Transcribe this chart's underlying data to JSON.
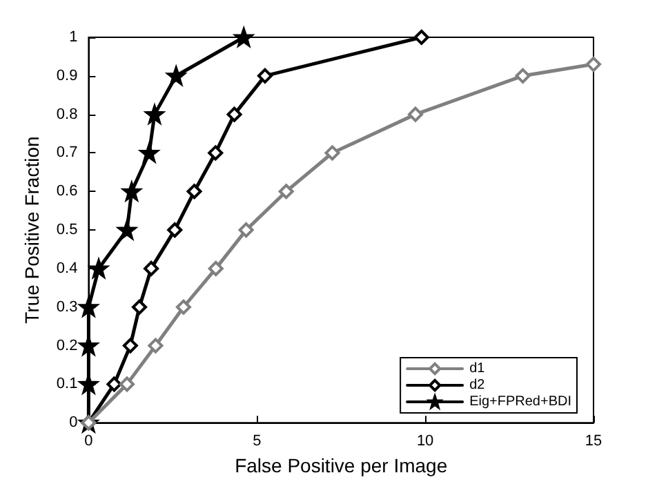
{
  "chart_data": {
    "type": "line",
    "xlabel": "False Positive per Image",
    "ylabel": "True Positive Fraction",
    "xlim": [
      0,
      15
    ],
    "xticks": [
      0,
      5,
      10,
      15
    ],
    "ylim": [
      0,
      1
    ],
    "yticks": [
      0,
      0.1,
      0.2,
      0.3,
      0.4,
      0.5,
      0.6,
      0.7,
      0.8,
      0.9,
      1
    ],
    "grid": false,
    "legend": "bottom right",
    "series": [
      {
        "name": "d1",
        "color": "#808080",
        "marker": "diamond",
        "x": [
          0,
          1.14,
          1.99,
          2.82,
          3.78,
          4.68,
          5.87,
          7.24,
          9.71,
          12.9,
          15
        ],
        "values": [
          0,
          0.1,
          0.2,
          0.3,
          0.4,
          0.5,
          0.6,
          0.7,
          0.8,
          0.9,
          0.93
        ]
      },
      {
        "name": "d2",
        "color": "#000000",
        "marker": "diamond",
        "x": [
          0,
          0.76,
          1.24,
          1.51,
          1.86,
          2.56,
          3.14,
          3.77,
          4.33,
          5.24,
          9.89
        ],
        "values": [
          0,
          0.1,
          0.2,
          0.3,
          0.4,
          0.5,
          0.6,
          0.7,
          0.8,
          0.9,
          1
        ]
      },
      {
        "name": "Eig+FPRed+BDI",
        "color": "#000000",
        "marker": "star",
        "x": [
          0,
          0,
          0,
          0,
          0.3,
          1.14,
          1.28,
          1.8,
          1.96,
          2.6,
          4.61
        ],
        "values": [
          0,
          0.1,
          0.2,
          0.3,
          0.4,
          0.5,
          0.6,
          0.7,
          0.8,
          0.9,
          1
        ]
      }
    ]
  }
}
